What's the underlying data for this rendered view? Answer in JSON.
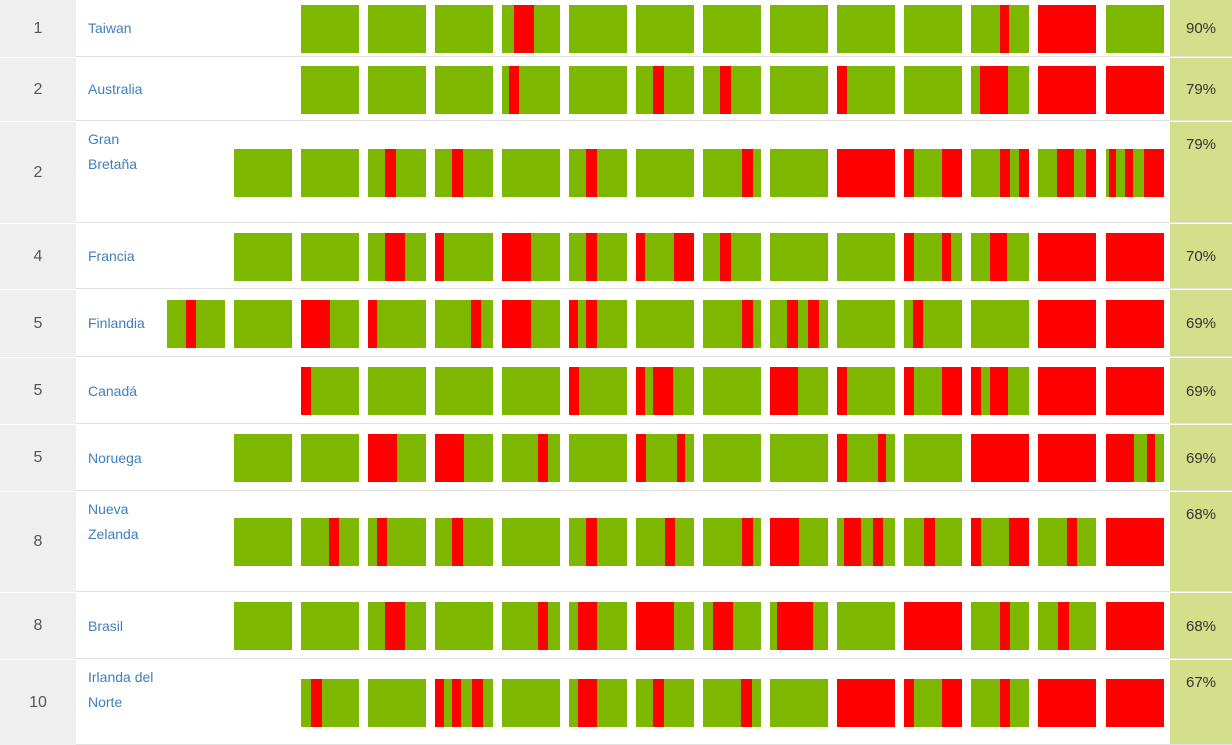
{
  "colors": {
    "correct": "#7db700",
    "wrong": "#ff0000",
    "score_bg": "#d3df8b",
    "rank_bg": "#efefef",
    "link": "#3f7fbf"
  },
  "rows": [
    {
      "rank": "1",
      "country": "Taiwan",
      "score": "90%",
      "cells": [
        [],
        [],
        [],
        [
          [
            0.2,
            0.35
          ]
        ],
        [],
        [],
        [],
        [],
        [],
        [],
        [
          [
            0.5,
            0.15
          ]
        ],
        [
          [
            0,
            1
          ]
        ],
        []
      ]
    },
    {
      "rank": "2",
      "country": "Australia",
      "score": "79%",
      "cells": [
        [],
        [],
        [],
        [
          [
            0.12,
            0.18
          ]
        ],
        [],
        [
          [
            0.3,
            0.18
          ]
        ],
        [
          [
            0.3,
            0.18
          ]
        ],
        [],
        [
          [
            0,
            0.18
          ]
        ],
        [],
        [
          [
            0.15,
            0.48
          ]
        ],
        [
          [
            0,
            1
          ]
        ],
        [
          [
            0,
            1
          ]
        ]
      ]
    },
    {
      "rank": "2",
      "country": "Gran\nBretaña",
      "score": "79%",
      "cells": [
        [],
        [],
        [
          [
            0.3,
            0.18
          ]
        ],
        [
          [
            0.3,
            0.18
          ]
        ],
        [],
        [
          [
            0.3,
            0.18
          ]
        ],
        [],
        [
          [
            0.68,
            0.18
          ]
        ],
        [],
        [
          [
            0,
            1
          ]
        ],
        [
          [
            0,
            0.18
          ],
          [
            0.66,
            0.34
          ]
        ],
        [
          [
            0.5,
            0.18
          ],
          [
            0.82,
            0.18
          ]
        ],
        [
          [
            0.32,
            0.3
          ],
          [
            0.82,
            0.18
          ]
        ],
        [
          [
            0.05,
            0.12
          ],
          [
            0.32,
            0.15
          ],
          [
            0.66,
            0.34
          ]
        ]
      ]
    },
    {
      "rank": "4",
      "country": "Francia",
      "score": "70%",
      "cells": [
        [],
        [],
        [
          [
            0.3,
            0.33
          ]
        ],
        [
          [
            0,
            0.15
          ]
        ],
        [
          [
            0,
            0.5
          ]
        ],
        [
          [
            0.3,
            0.18
          ]
        ],
        [
          [
            0,
            0.15
          ],
          [
            0.66,
            0.34
          ]
        ],
        [
          [
            0.3,
            0.18
          ]
        ],
        [],
        [],
        [
          [
            0,
            0.18
          ],
          [
            0.66,
            0.15
          ]
        ],
        [
          [
            0.32,
            0.3
          ]
        ],
        [
          [
            0,
            1
          ]
        ],
        [
          [
            0,
            1
          ]
        ]
      ]
    },
    {
      "rank": "5",
      "country": "Finlandia",
      "score": "69%",
      "cells": [
        [
          [
            0.32,
            0.18
          ]
        ],
        [],
        [
          [
            0,
            0.5
          ]
        ],
        [
          [
            0,
            0.15
          ]
        ],
        [
          [
            0.62,
            0.18
          ]
        ],
        [
          [
            0,
            0.5
          ]
        ],
        [
          [
            0,
            0.15
          ],
          [
            0.3,
            0.18
          ]
        ],
        [],
        [
          [
            0.68,
            0.18
          ]
        ],
        [
          [
            0.3,
            0.18
          ],
          [
            0.66,
            0.18
          ]
        ],
        [],
        [
          [
            0.15,
            0.18
          ]
        ],
        [],
        [
          [
            0,
            1
          ]
        ],
        [
          [
            0,
            1
          ]
        ]
      ]
    },
    {
      "rank": "5",
      "country": "Canadá",
      "score": "69%",
      "cells": [
        [
          [
            0,
            0.18
          ]
        ],
        [],
        [],
        [],
        [
          [
            0,
            0.18
          ]
        ],
        [
          [
            0,
            0.15
          ],
          [
            0.3,
            0.33
          ]
        ],
        [],
        [
          [
            0,
            0.48
          ]
        ],
        [
          [
            0,
            0.18
          ]
        ],
        [
          [
            0,
            0.18
          ],
          [
            0.66,
            0.34
          ]
        ],
        [
          [
            0,
            0.18
          ],
          [
            0.32,
            0.32
          ]
        ],
        [
          [
            0,
            1
          ]
        ],
        [
          [
            0,
            1
          ]
        ]
      ]
    },
    {
      "rank": "5",
      "country": "Noruega",
      "score": "69%",
      "cells": [
        [],
        [],
        [
          [
            0,
            0.5
          ]
        ],
        [
          [
            0,
            0.5
          ]
        ],
        [
          [
            0.62,
            0.18
          ]
        ],
        [],
        [
          [
            0,
            0.18
          ],
          [
            0.7,
            0.15
          ]
        ],
        [],
        [],
        [
          [
            0,
            0.18
          ],
          [
            0.7,
            0.15
          ]
        ],
        [],
        [
          [
            0,
            1
          ]
        ],
        [
          [
            0,
            1
          ]
        ],
        [
          [
            0,
            0.48
          ],
          [
            0.7,
            0.15
          ]
        ]
      ]
    },
    {
      "rank": "8",
      "country": "Nueva\nZelanda",
      "score": "68%",
      "cells": [
        [],
        [
          [
            0.48,
            0.18
          ]
        ],
        [
          [
            0.15,
            0.18
          ]
        ],
        [
          [
            0.3,
            0.18
          ]
        ],
        [],
        [
          [
            0.3,
            0.18
          ]
        ],
        [
          [
            0.5,
            0.18
          ]
        ],
        [
          [
            0.68,
            0.18
          ]
        ],
        [
          [
            0,
            0.5
          ]
        ],
        [
          [
            0.12,
            0.3
          ],
          [
            0.62,
            0.18
          ]
        ],
        [
          [
            0.35,
            0.18
          ]
        ],
        [
          [
            0,
            0.18
          ],
          [
            0.66,
            0.34
          ]
        ],
        [
          [
            0.5,
            0.18
          ]
        ],
        [
          [
            0,
            1
          ]
        ]
      ]
    },
    {
      "rank": "8",
      "country": "Brasil",
      "score": "68%",
      "cells": [
        [],
        [],
        [
          [
            0.3,
            0.33
          ]
        ],
        [],
        [
          [
            0.62,
            0.18
          ]
        ],
        [
          [
            0.15,
            0.33
          ]
        ],
        [
          [
            0,
            0.66
          ]
        ],
        [
          [
            0.18,
            0.33
          ]
        ],
        [
          [
            0.12,
            0.63
          ]
        ],
        [],
        [
          [
            0,
            1
          ]
        ],
        [
          [
            0.5,
            0.18
          ]
        ],
        [
          [
            0.35,
            0.18
          ]
        ],
        [
          [
            0,
            1
          ]
        ]
      ]
    },
    {
      "rank": "10",
      "country": "Irlanda del\nNorte",
      "score": "67%",
      "cells": [
        [
          [
            0.18,
            0.18
          ]
        ],
        [],
        [
          [
            0,
            0.15
          ],
          [
            0.3,
            0.15
          ],
          [
            0.64,
            0.18
          ]
        ],
        [],
        [
          [
            0.15,
            0.33
          ]
        ],
        [
          [
            0.3,
            0.18
          ]
        ],
        [
          [
            0.66,
            0.18
          ]
        ],
        [],
        [
          [
            0,
            1
          ]
        ],
        [
          [
            0,
            0.18
          ],
          [
            0.66,
            0.34
          ]
        ],
        [
          [
            0.5,
            0.18
          ]
        ],
        [
          [
            0,
            1
          ]
        ],
        [
          [
            0,
            1
          ]
        ]
      ]
    }
  ]
}
